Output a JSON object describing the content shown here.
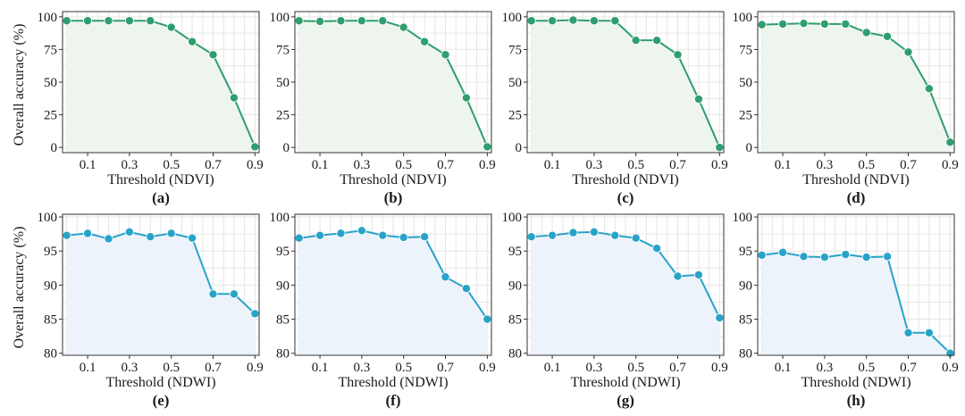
{
  "figure": {
    "y_axis_label": "Overall accuracy (%)"
  },
  "chart_data": [
    {
      "panel": "(a)",
      "type": "line",
      "xlabel": "Threshold (NDVI)",
      "ylabel": "Overall accuracy (%)",
      "x": [
        0.0,
        0.1,
        0.2,
        0.3,
        0.4,
        0.5,
        0.6,
        0.7,
        0.8,
        0.9
      ],
      "values": [
        97,
        97,
        97,
        97,
        97,
        92,
        81,
        71,
        38,
        0.5
      ],
      "xlim": [
        -0.02,
        0.92
      ],
      "ylim": [
        -4,
        104
      ],
      "xticks": [
        0.1,
        0.3,
        0.5,
        0.7,
        0.9
      ],
      "xtick_labels": [
        "0.1",
        "0.3",
        "0.5",
        "0.7",
        "0.9"
      ],
      "yticks": [
        0,
        25,
        50,
        75,
        100
      ],
      "ytick_labels": [
        "0",
        "25",
        "50",
        "75",
        "100"
      ],
      "color": "#2e9e6e",
      "fill": "#eef5ee"
    },
    {
      "panel": "(b)",
      "type": "line",
      "xlabel": "Threshold (NDVI)",
      "ylabel": "Overall accuracy (%)",
      "x": [
        0.0,
        0.1,
        0.2,
        0.3,
        0.4,
        0.5,
        0.6,
        0.7,
        0.8,
        0.9
      ],
      "values": [
        97,
        96.5,
        97,
        97,
        97,
        92,
        81,
        71,
        38,
        0.5
      ],
      "xlim": [
        -0.02,
        0.92
      ],
      "ylim": [
        -4,
        104
      ],
      "xticks": [
        0.1,
        0.3,
        0.5,
        0.7,
        0.9
      ],
      "xtick_labels": [
        "0.1",
        "0.3",
        "0.5",
        "0.7",
        "0.9"
      ],
      "yticks": [
        0,
        25,
        50,
        75,
        100
      ],
      "ytick_labels": [
        "0",
        "25",
        "50",
        "75",
        "100"
      ],
      "color": "#2e9e6e",
      "fill": "#eef5ee"
    },
    {
      "panel": "(c)",
      "type": "line",
      "xlabel": "Threshold (NDVI)",
      "ylabel": "Overall accuracy (%)",
      "x": [
        0.0,
        0.1,
        0.2,
        0.3,
        0.4,
        0.5,
        0.6,
        0.7,
        0.8,
        0.9
      ],
      "values": [
        97,
        97,
        97.5,
        97,
        97,
        82,
        82,
        71,
        37,
        0
      ],
      "xlim": [
        -0.02,
        0.92
      ],
      "ylim": [
        -4,
        104
      ],
      "xticks": [
        0.1,
        0.3,
        0.5,
        0.7,
        0.9
      ],
      "xtick_labels": [
        "0.1",
        "0.3",
        "0.5",
        "0.7",
        "0.9"
      ],
      "yticks": [
        0,
        25,
        50,
        75,
        100
      ],
      "ytick_labels": [
        "0",
        "25",
        "50",
        "75",
        "100"
      ],
      "color": "#2e9e6e",
      "fill": "#eef5ee"
    },
    {
      "panel": "(d)",
      "type": "line",
      "xlabel": "Threshold (NDVI)",
      "ylabel": "Overall accuracy (%)",
      "x": [
        0.0,
        0.1,
        0.2,
        0.3,
        0.4,
        0.5,
        0.6,
        0.7,
        0.8,
        0.9
      ],
      "values": [
        94,
        94.5,
        95,
        94.5,
        94.5,
        88,
        85,
        73,
        45,
        4
      ],
      "xlim": [
        -0.02,
        0.92
      ],
      "ylim": [
        -4,
        104
      ],
      "xticks": [
        0.1,
        0.3,
        0.5,
        0.7,
        0.9
      ],
      "xtick_labels": [
        "0.1",
        "0.3",
        "0.5",
        "0.7",
        "0.9"
      ],
      "yticks": [
        0,
        25,
        50,
        75,
        100
      ],
      "ytick_labels": [
        "0",
        "25",
        "50",
        "75",
        "100"
      ],
      "color": "#2e9e6e",
      "fill": "#eef5ee"
    },
    {
      "panel": "(e)",
      "type": "line",
      "xlabel": "Threshold (NDWI)",
      "ylabel": "Overall accuracy (%)",
      "x": [
        0.0,
        0.1,
        0.2,
        0.3,
        0.4,
        0.5,
        0.6,
        0.7,
        0.8,
        0.9
      ],
      "values": [
        97.3,
        97.6,
        96.8,
        97.8,
        97.1,
        97.6,
        96.9,
        88.7,
        88.7,
        85.8
      ],
      "xlim": [
        -0.02,
        0.92
      ],
      "ylim": [
        79.7,
        100.4
      ],
      "xticks": [
        0.1,
        0.3,
        0.5,
        0.7,
        0.9
      ],
      "xtick_labels": [
        "0.1",
        "0.3",
        "0.5",
        "0.7",
        "0.9"
      ],
      "yticks": [
        80,
        85,
        90,
        95,
        100
      ],
      "ytick_labels": [
        "80",
        "85",
        "90",
        "95",
        "100"
      ],
      "color": "#28a3c8",
      "fill": "#edf3fb"
    },
    {
      "panel": "(f)",
      "type": "line",
      "xlabel": "Threshold (NDWI)",
      "ylabel": "Overall accuracy (%)",
      "x": [
        0.0,
        0.1,
        0.2,
        0.3,
        0.4,
        0.5,
        0.6,
        0.7,
        0.8,
        0.9
      ],
      "values": [
        96.9,
        97.3,
        97.6,
        98,
        97.3,
        97,
        97.1,
        91.2,
        89.5,
        85
      ],
      "xlim": [
        -0.02,
        0.92
      ],
      "ylim": [
        79.7,
        100.4
      ],
      "xticks": [
        0.1,
        0.3,
        0.5,
        0.7,
        0.9
      ],
      "xtick_labels": [
        "0.1",
        "0.3",
        "0.5",
        "0.7",
        "0.9"
      ],
      "yticks": [
        80,
        85,
        90,
        95,
        100
      ],
      "ytick_labels": [
        "80",
        "85",
        "90",
        "95",
        "100"
      ],
      "color": "#28a3c8",
      "fill": "#edf3fb"
    },
    {
      "panel": "(g)",
      "type": "line",
      "xlabel": "Threshold (NDWI)",
      "ylabel": "Overall accuracy (%)",
      "x": [
        0.0,
        0.1,
        0.2,
        0.3,
        0.4,
        0.5,
        0.6,
        0.7,
        0.8,
        0.9
      ],
      "values": [
        97.1,
        97.3,
        97.7,
        97.8,
        97.3,
        96.9,
        95.4,
        91.3,
        91.5,
        85.2
      ],
      "xlim": [
        -0.02,
        0.92
      ],
      "ylim": [
        79.7,
        100.4
      ],
      "xticks": [
        0.1,
        0.3,
        0.5,
        0.7,
        0.9
      ],
      "xtick_labels": [
        "0.1",
        "0.3",
        "0.5",
        "0.7",
        "0.9"
      ],
      "yticks": [
        80,
        85,
        90,
        95,
        100
      ],
      "ytick_labels": [
        "80",
        "85",
        "90",
        "95",
        "100"
      ],
      "color": "#28a3c8",
      "fill": "#edf3fb"
    },
    {
      "panel": "(h)",
      "type": "line",
      "xlabel": "Threshold (NDWI)",
      "ylabel": "Overall accuracy (%)",
      "x": [
        0.0,
        0.1,
        0.2,
        0.3,
        0.4,
        0.5,
        0.6,
        0.7,
        0.8,
        0.9
      ],
      "values": [
        94.4,
        94.8,
        94.2,
        94.1,
        94.5,
        94.1,
        94.2,
        83,
        83,
        80
      ],
      "xlim": [
        -0.02,
        0.92
      ],
      "ylim": [
        79.7,
        100.4
      ],
      "xticks": [
        0.1,
        0.3,
        0.5,
        0.7,
        0.9
      ],
      "xtick_labels": [
        "0.1",
        "0.3",
        "0.5",
        "0.7",
        "0.9"
      ],
      "yticks": [
        80,
        85,
        90,
        95,
        100
      ],
      "ytick_labels": [
        "80",
        "85",
        "90",
        "95",
        "100"
      ],
      "color": "#28a3c8",
      "fill": "#edf3fb"
    }
  ]
}
